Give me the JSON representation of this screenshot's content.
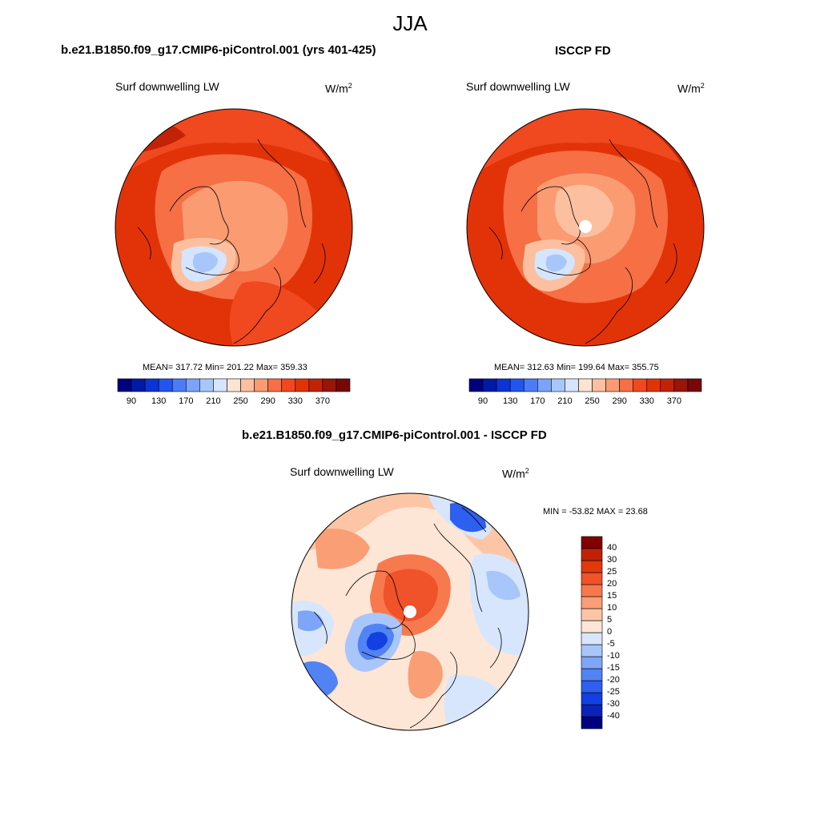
{
  "title": "JJA",
  "panels": [
    {
      "title": "b.e21.B1850.f09_g17.CMIP6-piControl.001 (yrs 401-425)",
      "variable": "Surf downwelling LW",
      "units_base": "W/m",
      "units_exp": "2",
      "stats": "MEAN= 317.72  Min= 201.22  Max= 359.33"
    },
    {
      "title": "ISCCP FD",
      "variable": "Surf downwelling LW",
      "units_base": "W/m",
      "units_exp": "2",
      "stats": "MEAN= 312.63  Min= 199.64  Max= 355.75"
    },
    {
      "title": "b.e21.B1850.f09_g17.CMIP6-piControl.001 - ISCCP FD",
      "variable": "Surf downwelling LW",
      "units_base": "W/m",
      "units_exp": "2",
      "stats": "MIN = -53.82 MAX =  23.68"
    }
  ],
  "colorbar_abs": {
    "colors": [
      "#00007f",
      "#001aa8",
      "#0a35d4",
      "#2255f0",
      "#4a7cf7",
      "#7aa3f9",
      "#a9c6fb",
      "#d5e5fd",
      "#fde4d2",
      "#fcc0a0",
      "#fa9b72",
      "#f66f45",
      "#f0481f",
      "#e23308",
      "#c22306",
      "#9a1407",
      "#780808"
    ],
    "labels": [
      "90",
      "130",
      "170",
      "210",
      "250",
      "290",
      "330",
      "370"
    ]
  },
  "colorbar_diff": {
    "colors": [
      "#00007f",
      "#0a22b8",
      "#1340e0",
      "#2e5ff0",
      "#5283f5",
      "#7ea5f8",
      "#a9c6fb",
      "#d7e6fd",
      "#fde6d6",
      "#fcc6a6",
      "#fa9e76",
      "#f7794e",
      "#f0522a",
      "#e1380c",
      "#c02207",
      "#7f0000"
    ],
    "labels": [
      "-40",
      "-30",
      "-25",
      "-20",
      "-15",
      "-10",
      "-5",
      "0",
      "5",
      "10",
      "15",
      "20",
      "25",
      "30",
      "40"
    ]
  }
}
